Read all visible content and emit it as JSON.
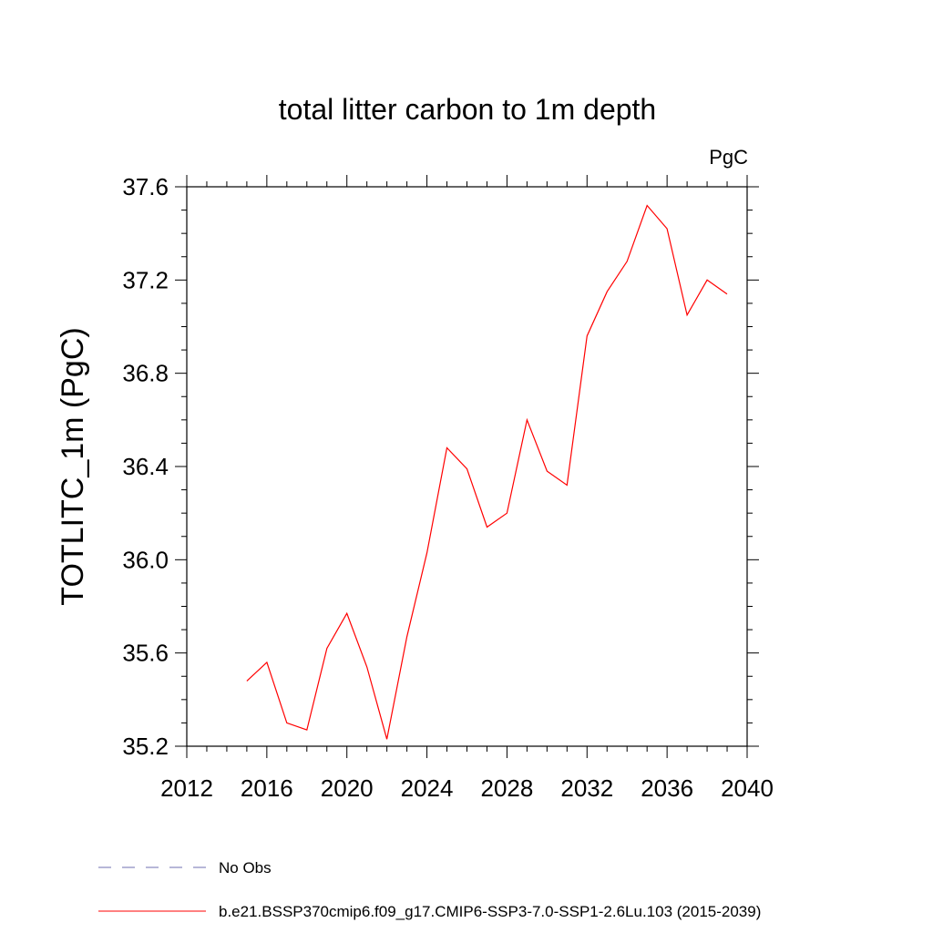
{
  "chart_data": {
    "type": "line",
    "title": "total litter carbon to 1m depth",
    "units_label": "PgC",
    "ylabel": "TOTLITC_1m  (PgC)",
    "xlabel": "",
    "xlim": [
      2012,
      2040
    ],
    "ylim": [
      35.2,
      37.6
    ],
    "x_ticks": [
      2012,
      2016,
      2020,
      2024,
      2028,
      2032,
      2036,
      2040
    ],
    "x_tick_labels": [
      "2012",
      "2016",
      "2020",
      "2024",
      "2028",
      "2032",
      "2036",
      "2040"
    ],
    "y_ticks": [
      35.2,
      35.6,
      36.0,
      36.4,
      36.8,
      37.2,
      37.6
    ],
    "y_tick_labels": [
      "35.2",
      "35.6",
      "36.0",
      "36.4",
      "36.8",
      "37.2",
      "37.6"
    ],
    "series": [
      {
        "name": "b.e21.BSSP370cmip6.f09_g17.CMIP6-SSP3-7.0-SSP1-2.6Lu.103 (2015-2039)",
        "color": "#ff0000",
        "style": "solid",
        "x": [
          2015,
          2016,
          2017,
          2018,
          2019,
          2020,
          2021,
          2022,
          2023,
          2024,
          2025,
          2026,
          2027,
          2028,
          2029,
          2030,
          2031,
          2032,
          2033,
          2034,
          2035,
          2036,
          2037,
          2038,
          2039
        ],
        "y": [
          35.48,
          35.56,
          35.3,
          35.27,
          35.62,
          35.77,
          35.54,
          35.23,
          35.67,
          36.03,
          36.48,
          36.39,
          36.14,
          36.2,
          36.6,
          36.38,
          36.32,
          36.96,
          37.15,
          37.28,
          37.52,
          37.42,
          37.05,
          37.2,
          37.14
        ]
      }
    ],
    "legend": [
      {
        "label": "No Obs",
        "color": "#6f6fb0",
        "style": "dashed"
      },
      {
        "label": "b.e21.BSSP370cmip6.f09_g17.CMIP6-SSP3-7.0-SSP1-2.6Lu.103 (2015-2039)",
        "color": "#ff0000",
        "style": "solid"
      }
    ],
    "legend_position": "bottom-left"
  }
}
